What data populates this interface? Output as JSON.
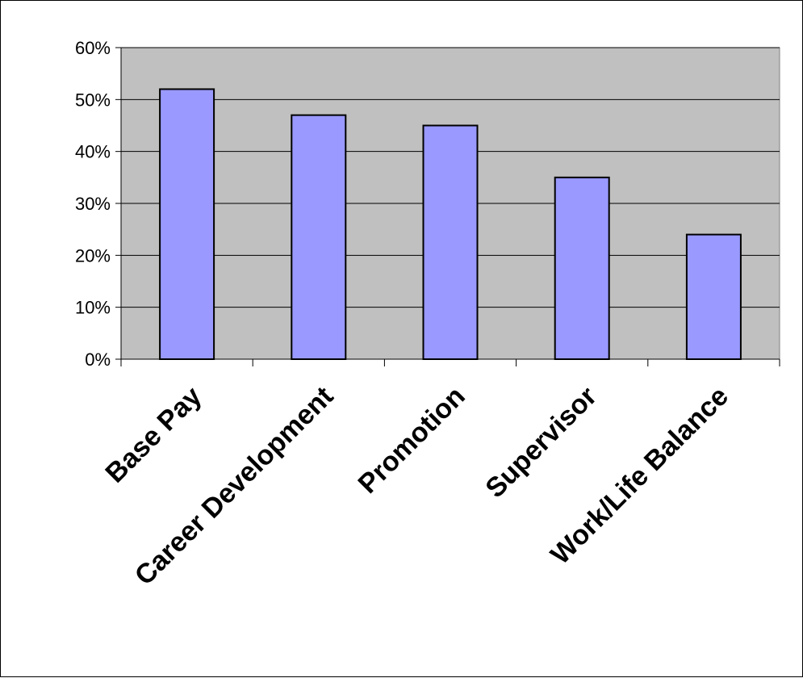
{
  "chart_data": {
    "type": "bar",
    "categories": [
      "Base Pay",
      "Career Development",
      "Promotion",
      "Supervisor",
      "Work/Life Balance"
    ],
    "values": [
      52,
      47,
      45,
      35,
      24
    ],
    "value_format": "percent",
    "ylim": [
      0,
      60
    ],
    "yticks": [
      "0%",
      "10%",
      "20%",
      "30%",
      "40%",
      "50%",
      "60%"
    ],
    "ytick_values": [
      0,
      10,
      20,
      30,
      40,
      50,
      60
    ],
    "grid": true,
    "legend": "none",
    "colors": {
      "plot_background": "#c0c0c0",
      "bar_fill": "#9999ff",
      "bar_stroke": "#000000",
      "gridline": "#000000"
    }
  }
}
